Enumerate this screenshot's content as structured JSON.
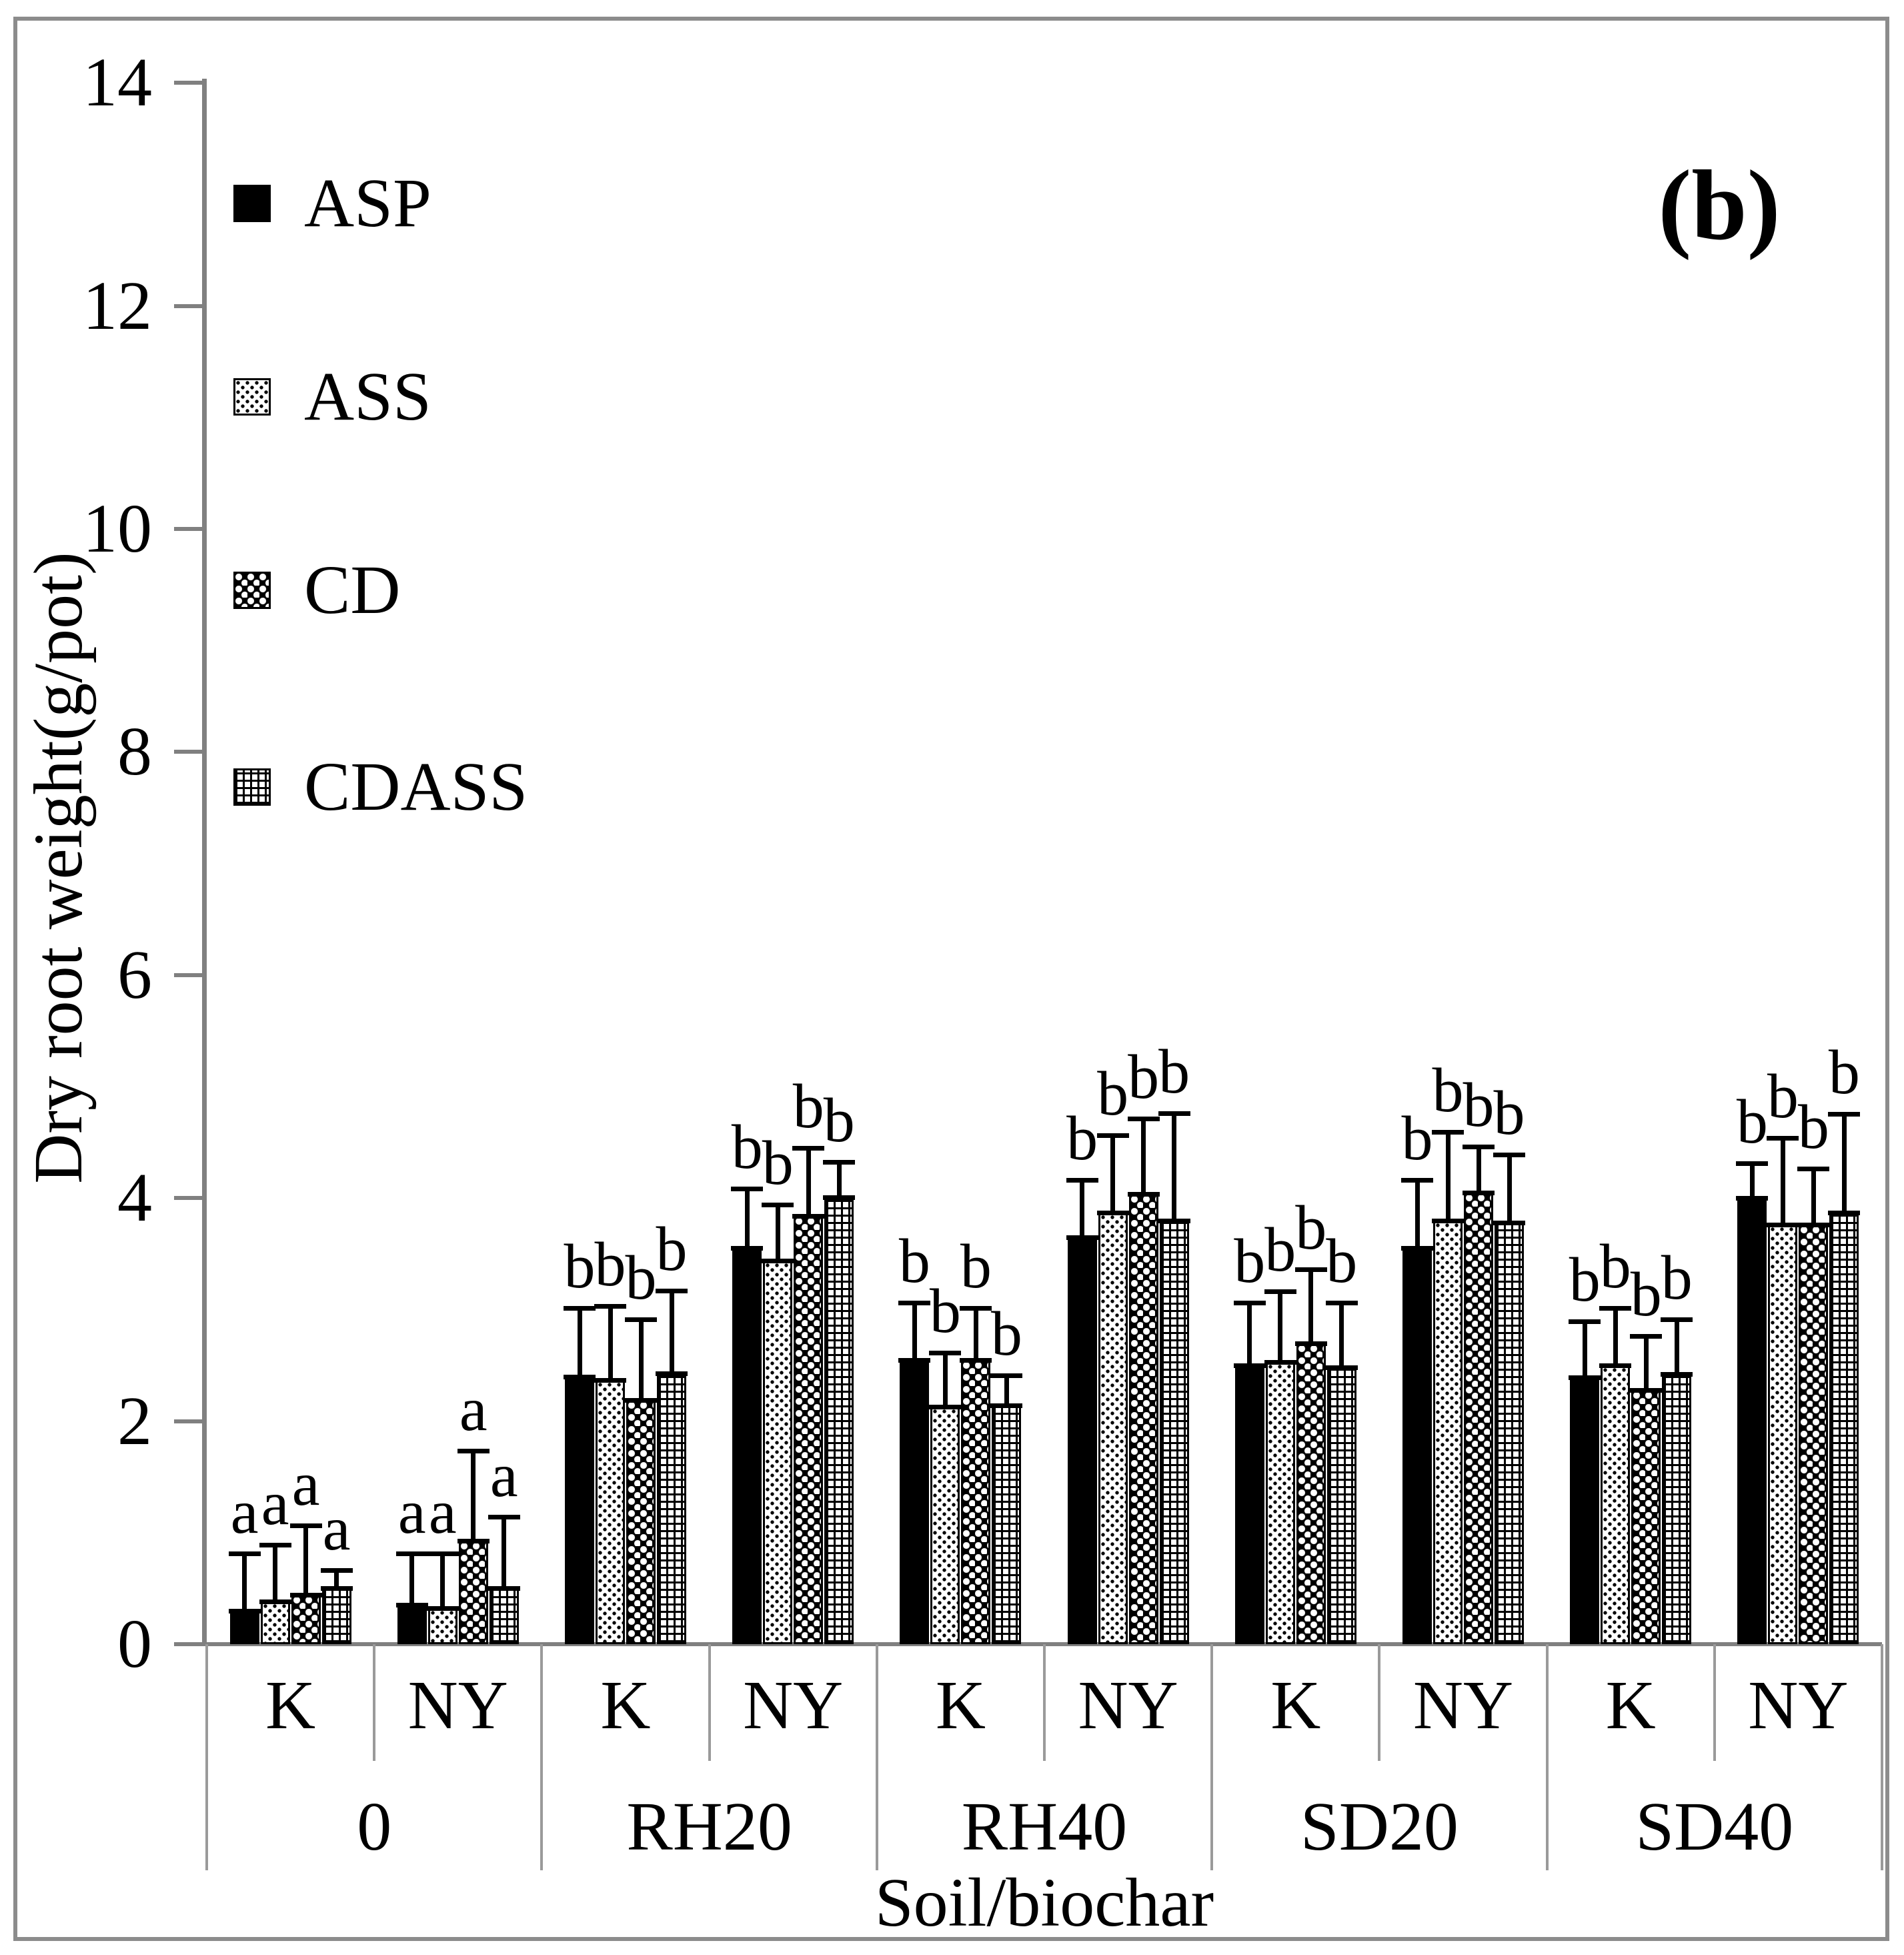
{
  "figure": {
    "panel_label": "(b)"
  },
  "colors": {
    "ink": "#000000",
    "axis_gray": "#808080",
    "separator_gray": "#9a9a9a",
    "frame_gray": "#8c8c8c",
    "background": "#ffffff"
  },
  "chart_data": {
    "type": "bar",
    "title": "",
    "panel_label": "(b)",
    "ylabel": "Dry root weight(g/pot)",
    "xlabel": "Soil/biochar",
    "ylim": [
      0,
      14
    ],
    "yticks": [
      0,
      2,
      4,
      6,
      8,
      10,
      12,
      14
    ],
    "grid": false,
    "legend_position": "upper-left",
    "error_bars": "upper-only",
    "groups": [
      "0",
      "RH20",
      "RH40",
      "SD20",
      "SD40"
    ],
    "subgroups": [
      "K",
      "NY"
    ],
    "series": [
      {
        "name": "ASP",
        "pattern": "solid-black"
      },
      {
        "name": "ASS",
        "pattern": "polka-dots"
      },
      {
        "name": "CD",
        "pattern": "woven-circles"
      },
      {
        "name": "CDASS",
        "pattern": "grid"
      }
    ],
    "clusters": [
      {
        "group": "0",
        "sub": "K",
        "values": [
          0.3,
          0.38,
          0.44,
          0.5
        ],
        "error_top": [
          0.8,
          0.88,
          1.05,
          0.65
        ],
        "letters": [
          "a",
          "a",
          "a",
          "a"
        ]
      },
      {
        "group": "0",
        "sub": "NY",
        "values": [
          0.35,
          0.32,
          0.93,
          0.5
        ],
        "error_top": [
          0.8,
          0.8,
          1.72,
          1.13
        ],
        "letters": [
          "a",
          "a",
          "a",
          "a"
        ]
      },
      {
        "group": "RH20",
        "sub": "K",
        "values": [
          2.4,
          2.37,
          2.19,
          2.43
        ],
        "error_top": [
          3.0,
          3.02,
          2.9,
          3.16
        ],
        "letters": [
          "b",
          "b",
          "b",
          "b"
        ]
      },
      {
        "group": "RH20",
        "sub": "NY",
        "values": [
          3.55,
          3.44,
          3.84,
          4.01
        ],
        "error_top": [
          4.07,
          3.93,
          4.44,
          4.31
        ],
        "letters": [
          "b",
          "b",
          "b",
          "b"
        ]
      },
      {
        "group": "RH40",
        "sub": "K",
        "values": [
          2.55,
          2.13,
          2.55,
          2.14
        ],
        "error_top": [
          3.05,
          2.6,
          3.0,
          2.4
        ],
        "letters": [
          "b",
          "b",
          "b",
          "b"
        ]
      },
      {
        "group": "RH40",
        "sub": "NY",
        "values": [
          3.65,
          3.87,
          4.04,
          3.8
        ],
        "error_top": [
          4.15,
          4.55,
          4.7,
          4.75
        ],
        "letters": [
          "b",
          "b",
          "b",
          "b"
        ]
      },
      {
        "group": "SD20",
        "sub": "K",
        "values": [
          2.5,
          2.53,
          2.7,
          2.48
        ],
        "error_top": [
          3.05,
          3.15,
          3.35,
          3.05
        ],
        "letters": [
          "b",
          "b",
          "b",
          "b"
        ]
      },
      {
        "group": "SD20",
        "sub": "NY",
        "values": [
          3.55,
          3.8,
          4.05,
          3.78
        ],
        "error_top": [
          4.15,
          4.58,
          4.45,
          4.38
        ],
        "letters": [
          "b",
          "b",
          "b",
          "b"
        ]
      },
      {
        "group": "SD40",
        "sub": "K",
        "values": [
          2.39,
          2.5,
          2.28,
          2.42
        ],
        "error_top": [
          2.88,
          3.0,
          2.75,
          2.9
        ],
        "letters": [
          "b",
          "b",
          "b",
          "b"
        ]
      },
      {
        "group": "SD40",
        "sub": "NY",
        "values": [
          4.0,
          3.76,
          3.76,
          3.87
        ],
        "error_top": [
          4.3,
          4.53,
          4.25,
          4.74
        ],
        "letters": [
          "b",
          "b",
          "b",
          "b"
        ]
      }
    ]
  }
}
